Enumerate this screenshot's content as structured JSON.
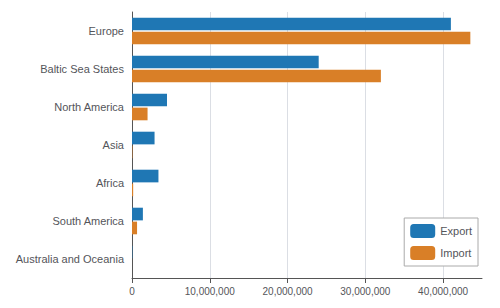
{
  "chart_data": {
    "type": "bar",
    "orientation": "horizontal",
    "categories": [
      "Australia and Oceania",
      "South America",
      "Africa",
      "Asia",
      "North America",
      "Baltic Sea States",
      "Europe"
    ],
    "series": [
      {
        "name": "Export",
        "color": "#1f77b4",
        "values": [
          50000,
          1400000,
          3400000,
          2900000,
          4500000,
          24000000,
          41000000
        ]
      },
      {
        "name": "Import",
        "color": "#d97f27",
        "values": [
          0,
          650000,
          150000,
          50000,
          2000000,
          32000000,
          43500000
        ]
      }
    ],
    "xlim": [
      0,
      45000000
    ],
    "xticks": [
      0,
      {
        "value": 10000000,
        "label": "10,000,000"
      },
      {
        "value": 20000000,
        "label": "20,000,000"
      },
      {
        "value": 30000000,
        "label": "30,000,000"
      },
      {
        "value": 40000000,
        "label": "40,000,000"
      }
    ],
    "grid": true,
    "legend": "lower right"
  }
}
